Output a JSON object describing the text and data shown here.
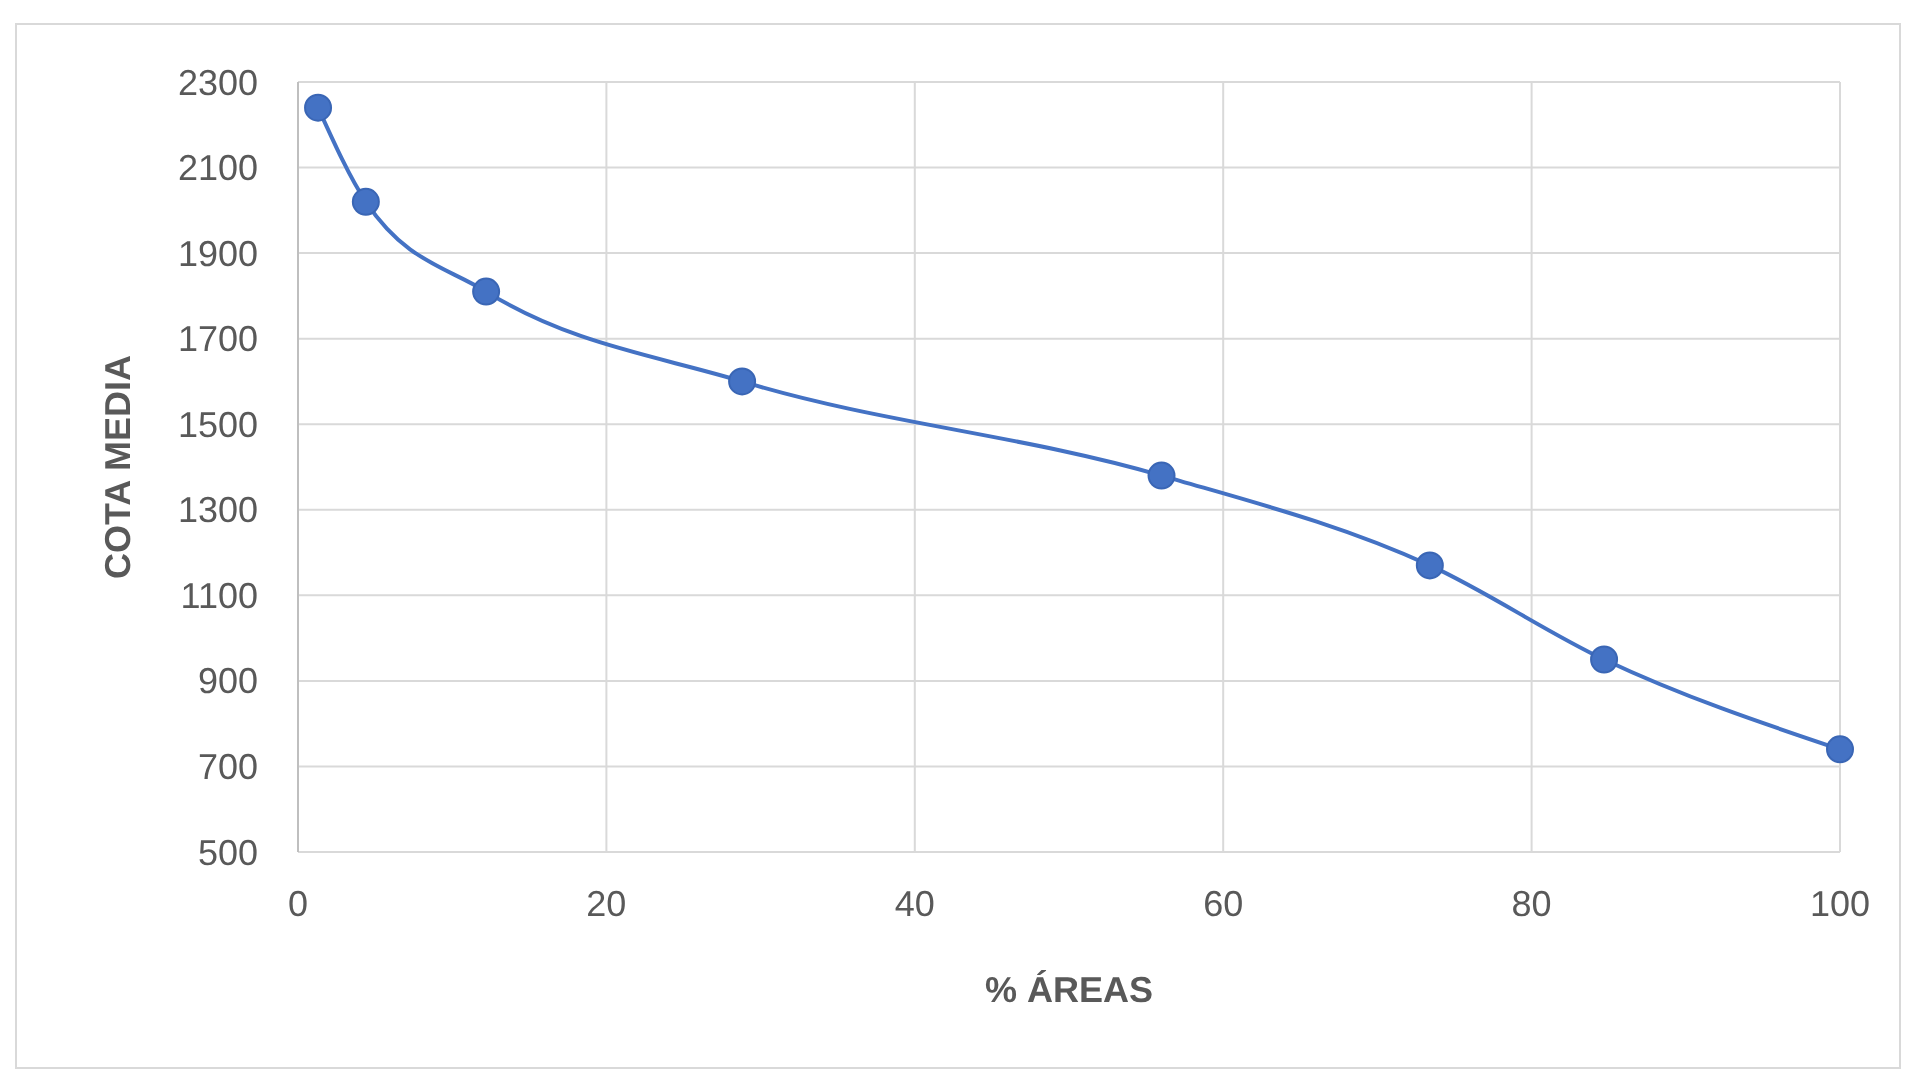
{
  "chart_data": {
    "type": "line",
    "xlabel": "% ÁREAS",
    "ylabel": "COTA MEDIA",
    "x": [
      1.3,
      4.4,
      12.2,
      28.8,
      56.0,
      73.4,
      84.7,
      100
    ],
    "series": [
      {
        "color": "#4472c4",
        "values": [
          2240,
          2020,
          1810,
          1600,
          1380,
          1170,
          950,
          740
        ]
      }
    ],
    "xlim": [
      0,
      100
    ],
    "xticks": [
      0,
      20,
      40,
      60,
      80,
      100
    ],
    "ylim": [
      500,
      2300
    ],
    "yticks": [
      500,
      700,
      900,
      1100,
      1300,
      1500,
      1700,
      1900,
      2100,
      2300
    ],
    "grid": true,
    "marker": "circle"
  }
}
